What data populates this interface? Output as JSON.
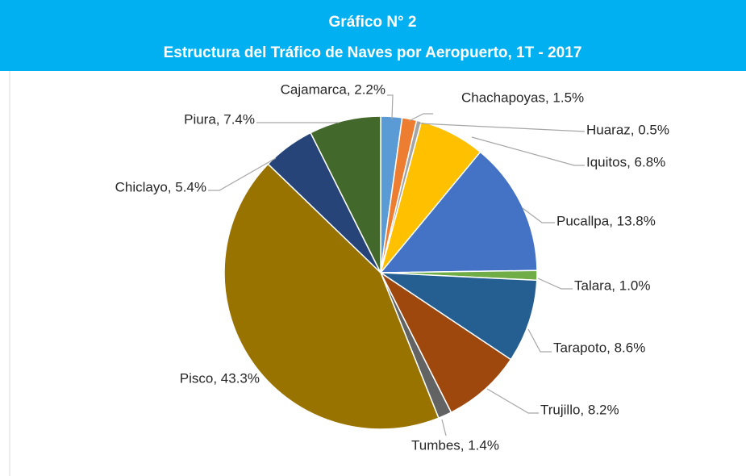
{
  "chart_data": {
    "type": "pie",
    "title": "Gráfico N° 2",
    "subtitle": "Estructura del Tráfico de Naves por Aeropuerto, 1T - 2017",
    "labels": [
      "Cajamarca, 2.2%",
      "Chachapoyas, 1.5%",
      "Huaraz, 0.5%",
      "Iquitos, 6.8%",
      "Pucallpa, 13.8%",
      "Talara, 1.0%",
      "Tarapoto, 8.6%",
      "Trujillo, 8.2%",
      "Tumbes, 1.4%",
      "Pisco, 43.3%",
      "Chiclayo, 5.4%",
      "Piura, 7.4%"
    ],
    "values": [
      2.2,
      1.5,
      0.5,
      6.8,
      13.8,
      1.0,
      8.6,
      8.2,
      1.4,
      43.3,
      5.4,
      7.4
    ],
    "colors": [
      "#5b9bd5",
      "#ed7d31",
      "#a5a5a5",
      "#ffc000",
      "#4472c4",
      "#70ad47",
      "#255e91",
      "#9e480e",
      "#636363",
      "#997300",
      "#264478",
      "#43682b"
    ]
  }
}
